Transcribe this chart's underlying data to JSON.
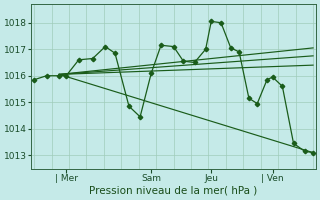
{
  "xlabel": "Pression niveau de la mer( hPa )",
  "bg_color": "#c5eae8",
  "line_color": "#1a5c1a",
  "ylim": [
    1012.5,
    1018.7
  ],
  "yticks": [
    1013,
    1014,
    1015,
    1016,
    1017,
    1018
  ],
  "ytick_labels": [
    "1013",
    "1014",
    "1015",
    "1016",
    "1017",
    "1018"
  ],
  "day_labels": [
    "| Mer",
    "Sam",
    "Jeu",
    "| Ven"
  ],
  "day_positions": [
    0.115,
    0.42,
    0.635,
    0.855
  ],
  "grid_color": "#a0ccbb",
  "n_vgrid": 17,
  "n_hgrid": 6,
  "series_main_x": [
    0.0,
    0.045,
    0.09,
    0.115,
    0.16,
    0.21,
    0.255,
    0.29,
    0.34,
    0.38,
    0.42,
    0.455,
    0.5,
    0.535,
    0.575,
    0.615,
    0.635,
    0.67,
    0.705,
    0.735,
    0.77,
    0.8,
    0.835,
    0.855,
    0.89,
    0.93,
    0.97,
    1.0
  ],
  "series_main_y": [
    1015.85,
    1016.0,
    1016.0,
    1016.0,
    1016.6,
    1016.65,
    1017.1,
    1016.85,
    1014.85,
    1014.45,
    1016.1,
    1017.15,
    1017.1,
    1016.55,
    1016.5,
    1017.0,
    1018.05,
    1018.0,
    1017.05,
    1016.9,
    1015.15,
    1014.95,
    1015.85,
    1015.95,
    1015.6,
    1013.45,
    1013.15,
    1013.1
  ],
  "series_trend1": [
    [
      0.09,
      1016.05
    ],
    [
      1.0,
      1017.05
    ]
  ],
  "series_trend2": [
    [
      0.09,
      1016.05
    ],
    [
      1.0,
      1016.75
    ]
  ],
  "series_trend3": [
    [
      0.09,
      1016.05
    ],
    [
      1.0,
      1016.4
    ]
  ],
  "series_trend4": [
    [
      0.09,
      1016.05
    ],
    [
      1.0,
      1013.1
    ]
  ]
}
